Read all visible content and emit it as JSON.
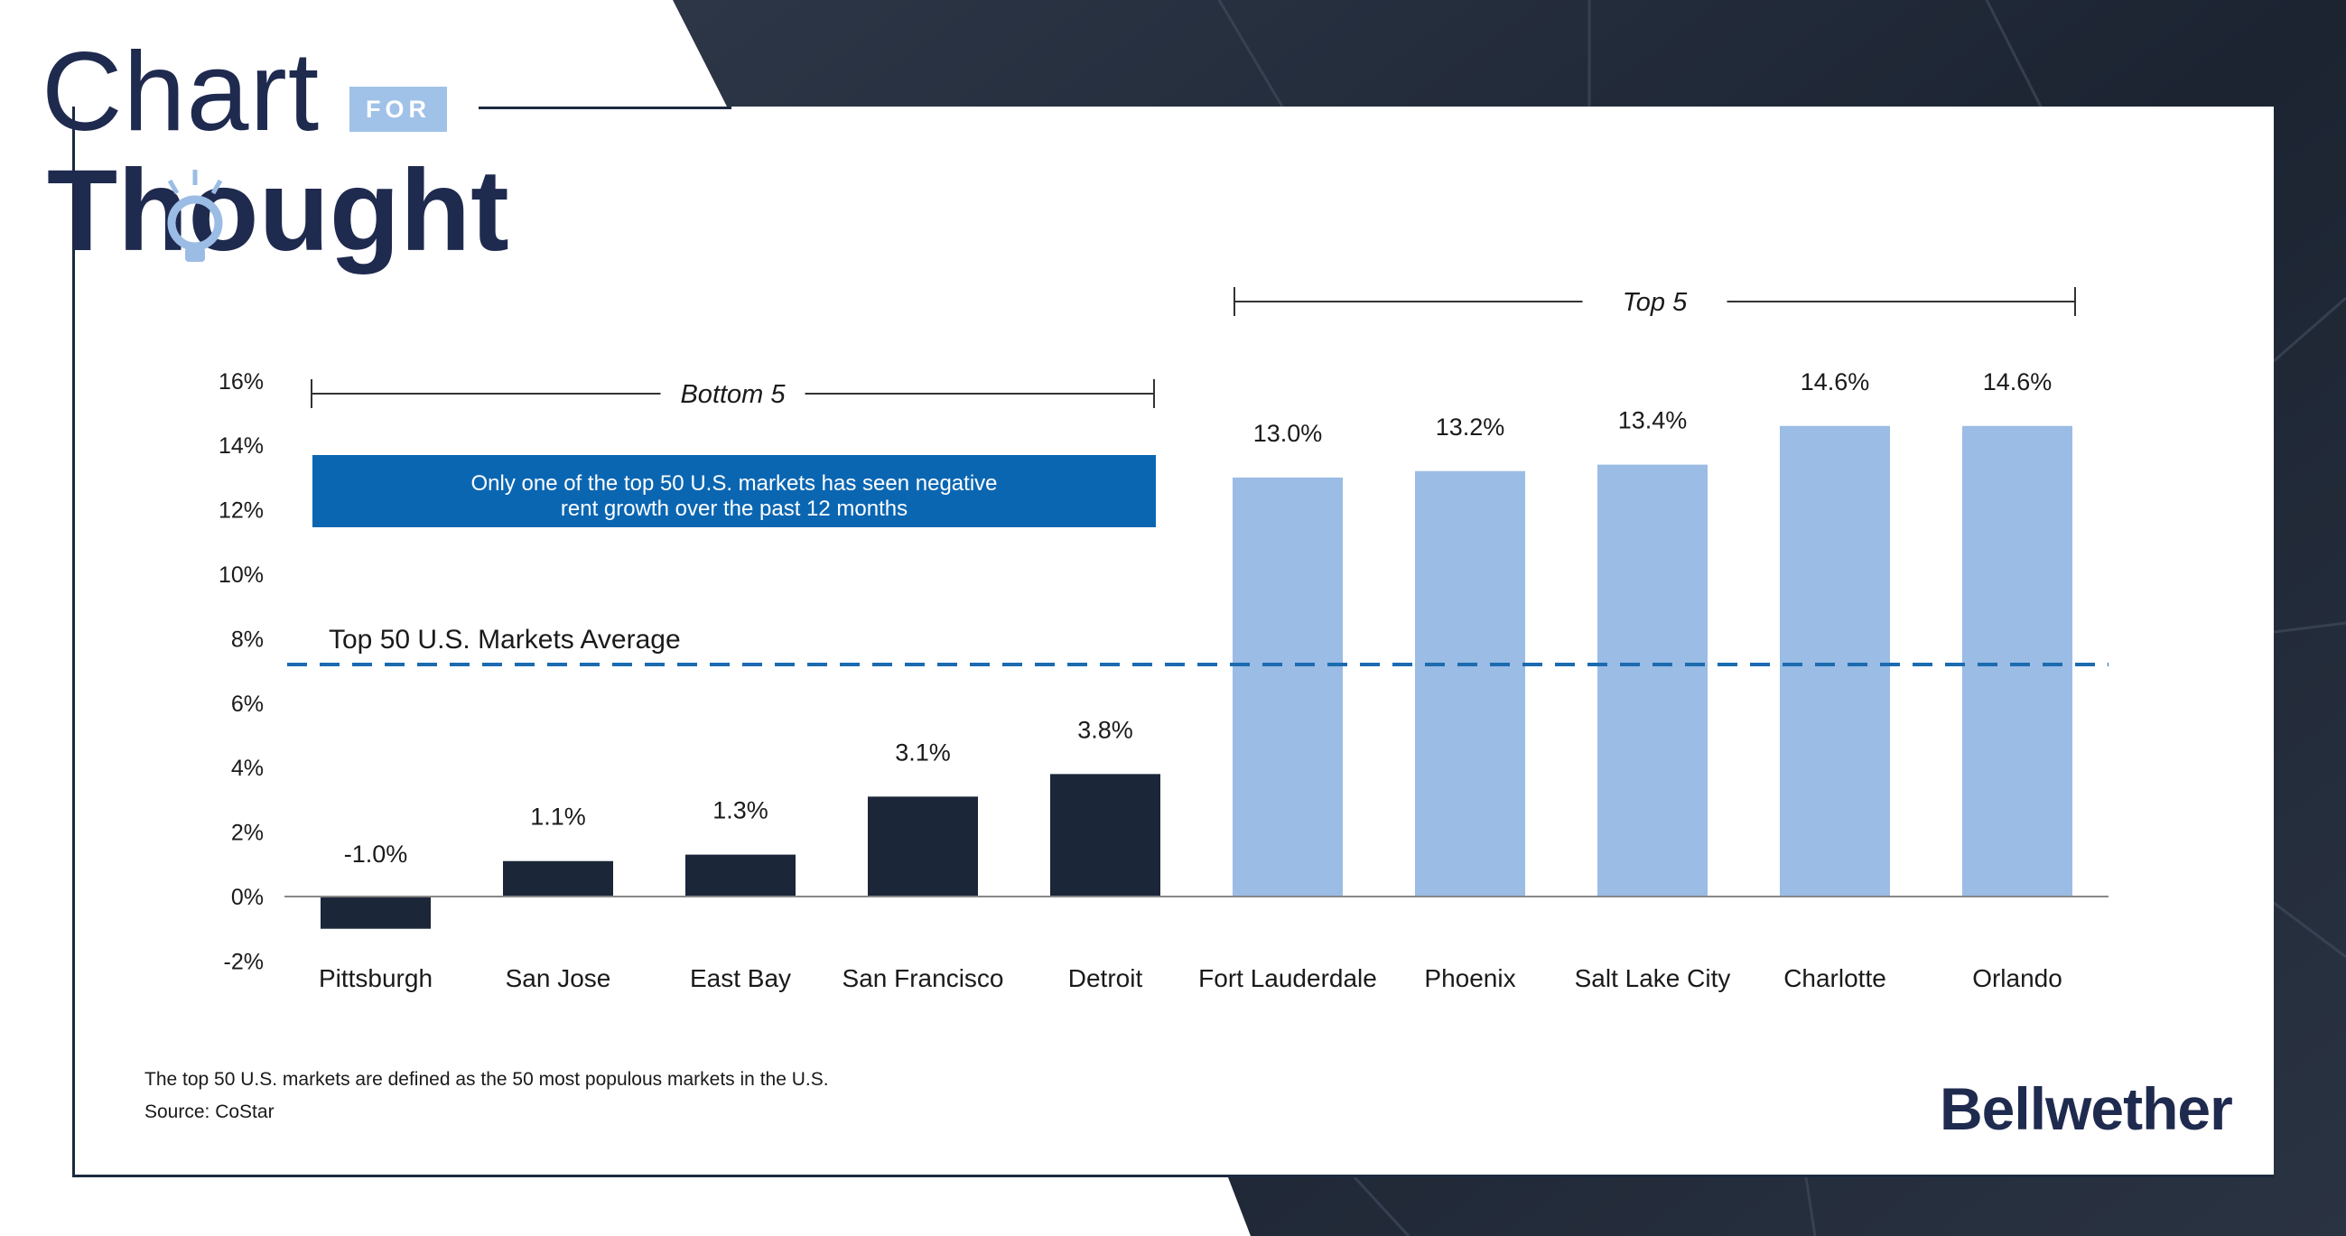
{
  "brand": {
    "logo_word1": "Chart",
    "logo_word2": "Thought",
    "logo_badge": "FOR",
    "company": "Bellwether"
  },
  "colors": {
    "bottom_bars": "#1b2638",
    "top_bars": "#9bbce4",
    "callout_bg": "#0b66b2",
    "avg_line": "#1c6bb0",
    "navy": "#1f2a4f"
  },
  "chart_data": {
    "type": "bar",
    "categories": [
      "Pittsburgh",
      "San Jose",
      "East Bay",
      "San Francisco",
      "Detroit",
      "Fort Lauderdale",
      "Phoenix",
      "Salt Lake City",
      "Charlotte",
      "Orlando"
    ],
    "values": [
      -1.0,
      1.1,
      1.3,
      3.1,
      3.8,
      13.0,
      13.2,
      13.4,
      14.6,
      14.6
    ],
    "value_labels": [
      "-1.0%",
      "1.1%",
      "1.3%",
      "3.1%",
      "3.8%",
      "13.0%",
      "13.2%",
      "13.4%",
      "14.6%",
      "14.6%"
    ],
    "group": [
      "bottom",
      "bottom",
      "bottom",
      "bottom",
      "bottom",
      "top",
      "top",
      "top",
      "top",
      "top"
    ],
    "ylim": [
      -2,
      16
    ],
    "yticks": [
      -2,
      0,
      2,
      4,
      6,
      8,
      10,
      12,
      14,
      16
    ],
    "ytick_labels": [
      "-2%",
      "0%",
      "2%",
      "4%",
      "6%",
      "8%",
      "10%",
      "12%",
      "14%",
      "16%"
    ],
    "average": {
      "label": "Top 50 U.S. Markets Average",
      "value": 7.2
    },
    "group_labels": {
      "bottom": "Bottom 5",
      "top": "Top 5"
    },
    "callout": [
      "Only one of the top 50 U.S. markets has seen negative",
      "rent growth over the past 12 months"
    ],
    "grid": false
  },
  "footnotes": {
    "definition": "The top 50 U.S. markets are defined as the 50 most populous markets in the U.S.",
    "source": "Source: CoStar"
  }
}
